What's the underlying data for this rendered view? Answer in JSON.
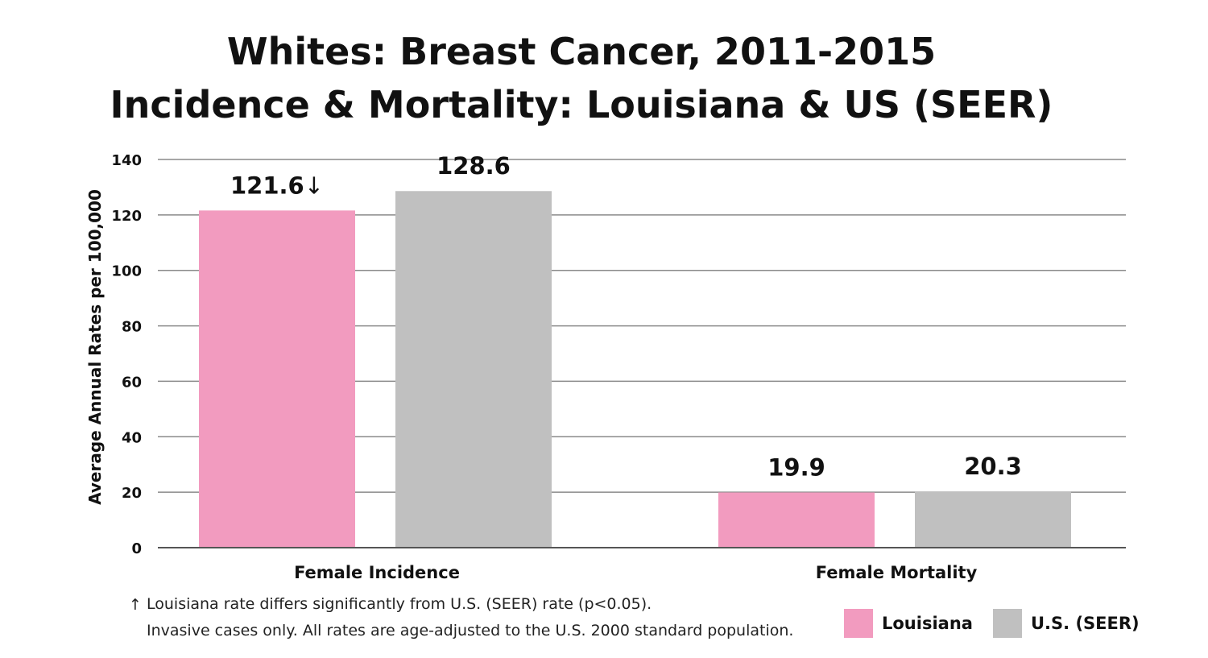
{
  "chart_data": {
    "type": "bar",
    "title_line1": "Whites: Breast Cancer, 2011-2015",
    "title_line2": "Incidence & Mortality: Louisiana & US (SEER)",
    "ylabel": "Average Annual Rates per 100,000",
    "ylim": [
      0,
      140
    ],
    "yticks": [
      "0",
      "20",
      "40",
      "60",
      "80",
      "100",
      "120",
      "140"
    ],
    "categories": [
      "Female Incidence",
      "Female Mortality"
    ],
    "series": [
      {
        "name": "Louisiana",
        "color": "#f29bbf",
        "values": [
          121.6,
          19.9
        ],
        "labels": [
          "121.6",
          "19.9"
        ],
        "significance_markers": [
          "↓",
          ""
        ]
      },
      {
        "name": "U.S. (SEER)",
        "color": "#c0c0c0",
        "values": [
          128.6,
          20.3
        ],
        "labels": [
          "128.6",
          "20.3"
        ],
        "significance_markers": [
          "",
          ""
        ]
      }
    ],
    "grid": true,
    "legend_position": "bottom-right",
    "footnotes": {
      "symbol": "↑",
      "line1": "Louisiana rate differs significantly from U.S. (SEER) rate (p<0.05).",
      "line2": "Invasive cases only. All rates are age-adjusted to the U.S. 2000 standard population."
    }
  }
}
